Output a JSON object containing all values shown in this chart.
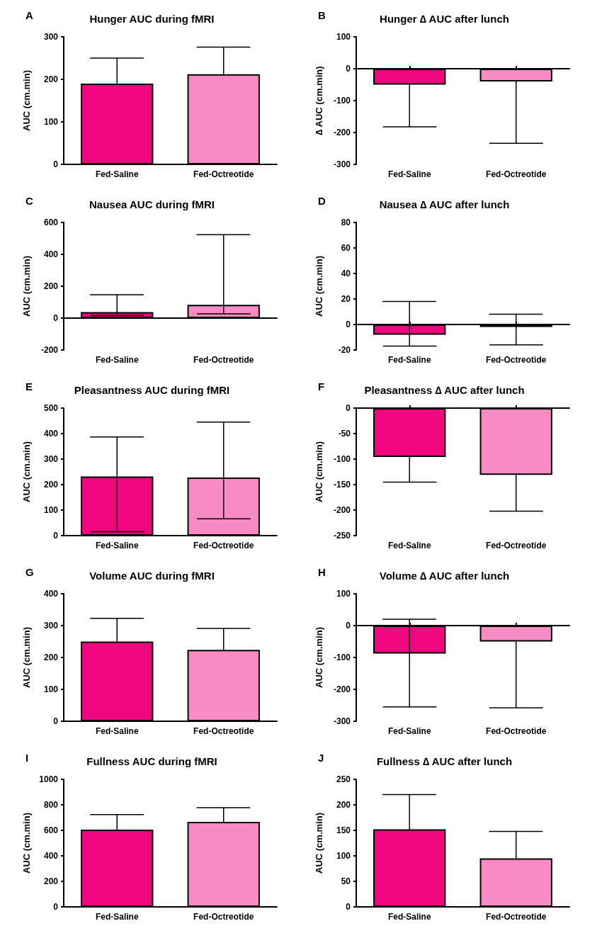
{
  "chart_data": [
    {
      "type": "bar",
      "title": "Hunger AUC during fMRI",
      "annotations": [
        "A"
      ],
      "ylabel": "AUC (cm.min)",
      "categories": [
        "Fed-Saline",
        "Fed-Octreotide"
      ],
      "values": [
        190,
        212
      ],
      "errors": [
        [
          190,
          250
        ],
        [
          212,
          276
        ]
      ],
      "colors": [
        "#f0077f",
        "#f78cc4"
      ],
      "ylim": [
        0,
        300
      ],
      "yticks": [
        0,
        100,
        200,
        300
      ]
    },
    {
      "type": "bar",
      "title": "Hunger ∆ AUC after lunch",
      "annotations": [
        "B"
      ],
      "ylabel": "∆ AUC (cm.min)",
      "categories": [
        "Fed-Saline",
        "Fed-Octreotide"
      ],
      "values": [
        -50,
        -40
      ],
      "errors": [
        [
          -182,
          -50
        ],
        [
          -234,
          -40
        ]
      ],
      "colors": [
        "#f0077f",
        "#f78cc4"
      ],
      "ylim": [
        -300,
        100
      ],
      "yticks": [
        -300,
        -200,
        -100,
        0,
        100
      ]
    },
    {
      "type": "bar",
      "title": "Nausea AUC during fMRI",
      "annotations": [
        "C"
      ],
      "ylabel": "AUC (cm.min)",
      "categories": [
        "Fed-Saline",
        "Fed-Octreotide"
      ],
      "values": [
        38,
        83
      ],
      "errors": [
        [
          17,
          147
        ],
        [
          27,
          523
        ]
      ],
      "colors": [
        "#f0077f",
        "#f78cc4"
      ],
      "ylim": [
        -200,
        600
      ],
      "yticks": [
        -200,
        0,
        200,
        400,
        600
      ]
    },
    {
      "type": "bar",
      "title": "Nausea ∆ AUC after lunch",
      "annotations": [
        "D"
      ],
      "ylabel": "AUC (cm.min)",
      "categories": [
        "Fed-Saline",
        "Fed-Octreotide"
      ],
      "values": [
        -8,
        -2
      ],
      "errors": [
        [
          -17,
          18
        ],
        [
          -16,
          8
        ]
      ],
      "colors": [
        "#f0077f",
        "#f78cc4"
      ],
      "ylim": [
        -20,
        80
      ],
      "yticks": [
        -20,
        0,
        20,
        40,
        60,
        80
      ]
    },
    {
      "type": "bar",
      "title": "Pleasantness AUC during fMRI",
      "annotations": [
        "E"
      ],
      "ylabel": "AUC (cm.min)",
      "categories": [
        "Fed-Saline",
        "Fed-Octreotide"
      ],
      "values": [
        232,
        228
      ],
      "errors": [
        [
          15,
          387
        ],
        [
          66,
          445
        ]
      ],
      "colors": [
        "#f0077f",
        "#f78cc4"
      ],
      "ylim": [
        0,
        500
      ],
      "yticks": [
        0,
        100,
        200,
        300,
        400,
        500
      ]
    },
    {
      "type": "bar",
      "title": "Pleasantness ∆ AUC after lunch",
      "annotations": [
        "F"
      ],
      "ylabel": "AUC (cm.min)",
      "categories": [
        "Fed-Saline",
        "Fed-Octreotide"
      ],
      "values": [
        -96,
        -131
      ],
      "errors": [
        [
          -145,
          -96
        ],
        [
          -202,
          -131
        ]
      ],
      "colors": [
        "#f0077f",
        "#f78cc4"
      ],
      "ylim": [
        -250,
        0
      ],
      "yticks": [
        -250,
        -200,
        -150,
        -100,
        -50,
        0
      ]
    },
    {
      "type": "bar",
      "title": "Volume AUC during fMRI",
      "annotations": [
        "G"
      ],
      "ylabel": "AUC (cm.min)",
      "categories": [
        "Fed-Saline",
        "Fed-Octreotide"
      ],
      "values": [
        250,
        224
      ],
      "errors": [
        [
          250,
          323
        ],
        [
          224,
          291
        ]
      ],
      "colors": [
        "#f0077f",
        "#f78cc4"
      ],
      "ylim": [
        0,
        400
      ],
      "yticks": [
        0,
        100,
        200,
        300,
        400
      ]
    },
    {
      "type": "bar",
      "title": "Volume ∆ AUC after lunch",
      "annotations": [
        "H"
      ],
      "ylabel": "AUC (cm.min)",
      "categories": [
        "Fed-Saline",
        "Fed-Octreotide"
      ],
      "values": [
        -88,
        -50
      ],
      "errors": [
        [
          -255,
          20
        ],
        [
          -258,
          -50
        ]
      ],
      "colors": [
        "#f0077f",
        "#f78cc4"
      ],
      "ylim": [
        -300,
        100
      ],
      "yticks": [
        -300,
        -200,
        -100,
        0,
        100
      ]
    },
    {
      "type": "bar",
      "title": "Fullness AUC during fMRI",
      "annotations": [
        "I"
      ],
      "ylabel": "AUC (cm.min)",
      "categories": [
        "Fed-Saline",
        "Fed-Octreotide"
      ],
      "values": [
        605,
        667
      ],
      "errors": [
        [
          605,
          724
        ],
        [
          667,
          778
        ]
      ],
      "colors": [
        "#f0077f",
        "#f78cc4"
      ],
      "ylim": [
        0,
        1000
      ],
      "yticks": [
        0,
        200,
        400,
        600,
        800,
        1000
      ]
    },
    {
      "type": "bar",
      "title": "Fullness ∆ AUC after lunch",
      "annotations": [
        "J"
      ],
      "ylabel": "AUC (cm.min)",
      "categories": [
        "Fed-Saline",
        "Fed-Octreotide"
      ],
      "values": [
        152,
        95
      ],
      "errors": [
        [
          152,
          220
        ],
        [
          95,
          148
        ]
      ],
      "colors": [
        "#f0077f",
        "#f78cc4"
      ],
      "ylim": [
        0,
        250
      ],
      "yticks": [
        0,
        50,
        100,
        150,
        200,
        250
      ]
    }
  ]
}
